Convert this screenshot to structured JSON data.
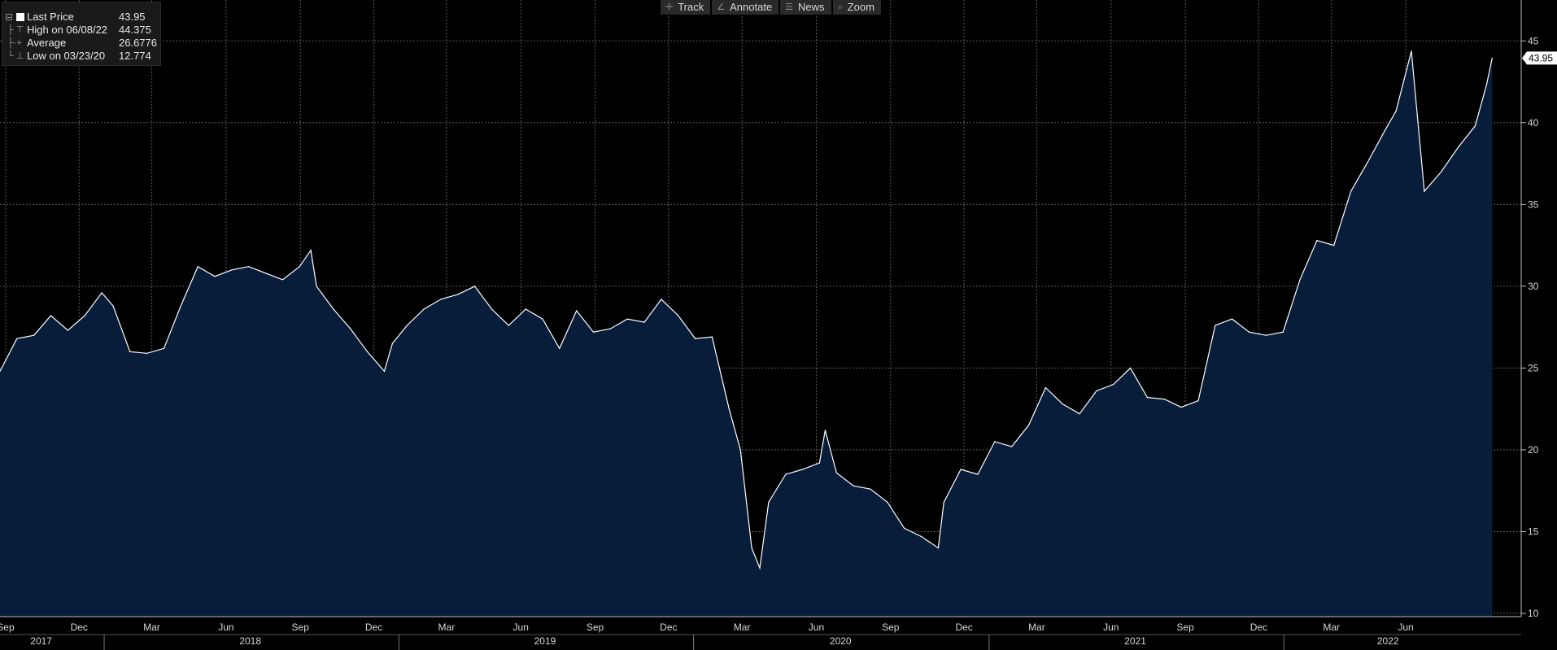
{
  "toolbar": {
    "track": {
      "label": "Track",
      "icon": "crosshair-icon"
    },
    "annotate": {
      "label": "Annotate",
      "icon": "pencil-icon"
    },
    "news": {
      "label": "News",
      "icon": "news-icon"
    },
    "zoom": {
      "label": "Zoom",
      "icon": "magnifier-icon"
    }
  },
  "legend": {
    "last": {
      "label": "Last Price",
      "value": "43.95"
    },
    "high": {
      "label": "High on 06/08/22",
      "value": "44.375"
    },
    "average": {
      "label": "Average",
      "value": "26.6776"
    },
    "low": {
      "label": "Low on 03/23/20",
      "value": "12.774"
    }
  },
  "colors": {
    "background": "#000000",
    "area_fill": "#071d3a",
    "line": "#ffffff",
    "grid": "#5a5a5a"
  },
  "chart_data": {
    "type": "area",
    "series": [
      {
        "name": "Last Price",
        "x": [
          "2017-08-25",
          "2017-09-15",
          "2017-10-06",
          "2017-10-27",
          "2017-11-17",
          "2017-12-08",
          "2017-12-29",
          "2018-01-12",
          "2018-02-02",
          "2018-02-23",
          "2018-03-16",
          "2018-04-06",
          "2018-04-27",
          "2018-05-18",
          "2018-06-08",
          "2018-06-29",
          "2018-07-20",
          "2018-08-10",
          "2018-08-31",
          "2018-09-14",
          "2018-09-21",
          "2018-10-12",
          "2018-11-02",
          "2018-11-23",
          "2018-12-14",
          "2018-12-24",
          "2019-01-11",
          "2019-02-01",
          "2019-02-22",
          "2019-03-15",
          "2019-04-05",
          "2019-04-26",
          "2019-05-17",
          "2019-06-07",
          "2019-06-28",
          "2019-07-19",
          "2019-08-09",
          "2019-08-30",
          "2019-09-20",
          "2019-10-11",
          "2019-11-01",
          "2019-11-22",
          "2019-12-13",
          "2020-01-03",
          "2020-01-24",
          "2020-02-14",
          "2020-02-28",
          "2020-03-13",
          "2020-03-23",
          "2020-04-03",
          "2020-04-24",
          "2020-05-15",
          "2020-06-05",
          "2020-06-12",
          "2020-06-26",
          "2020-07-17",
          "2020-08-07",
          "2020-08-28",
          "2020-09-18",
          "2020-10-09",
          "2020-10-30",
          "2020-11-06",
          "2020-11-27",
          "2020-12-18",
          "2021-01-08",
          "2021-01-29",
          "2021-02-19",
          "2021-03-12",
          "2021-04-02",
          "2021-04-23",
          "2021-05-14",
          "2021-06-04",
          "2021-06-25",
          "2021-07-16",
          "2021-08-06",
          "2021-08-27",
          "2021-09-17",
          "2021-10-08",
          "2021-10-29",
          "2021-11-19",
          "2021-12-10",
          "2021-12-31",
          "2022-01-21",
          "2022-02-11",
          "2022-03-04",
          "2022-03-25",
          "2022-04-15",
          "2022-05-06",
          "2022-05-20",
          "2022-06-08",
          "2022-06-24",
          "2022-07-15",
          "2022-08-05",
          "2022-08-26",
          "2022-09-09",
          "2022-09-16"
        ],
        "values": [
          24.8,
          26.8,
          27.0,
          28.2,
          27.3,
          28.2,
          29.6,
          28.8,
          26.0,
          25.9,
          26.2,
          28.8,
          31.2,
          30.6,
          31.0,
          31.2,
          30.8,
          30.4,
          31.2,
          32.2,
          30.0,
          28.6,
          27.4,
          26.0,
          24.8,
          26.5,
          27.6,
          28.6,
          29.2,
          29.5,
          30.0,
          28.6,
          27.6,
          28.6,
          28.0,
          26.2,
          28.5,
          27.2,
          27.4,
          28.0,
          27.8,
          29.2,
          28.2,
          26.8,
          26.9,
          22.5,
          20.0,
          14.0,
          12.774,
          16.8,
          18.5,
          18.8,
          19.2,
          21.2,
          18.6,
          17.8,
          17.6,
          16.8,
          15.2,
          14.7,
          14.0,
          16.8,
          18.8,
          18.5,
          20.5,
          20.2,
          21.5,
          23.8,
          22.8,
          22.2,
          23.6,
          24.0,
          25.0,
          23.2,
          23.1,
          22.6,
          23.0,
          27.6,
          28.0,
          27.2,
          27.0,
          27.2,
          30.4,
          32.8,
          32.5,
          35.8,
          37.6,
          39.5,
          40.7,
          44.375,
          35.8,
          37.0,
          38.5,
          39.8,
          42.3,
          43.95
        ]
      }
    ],
    "x_ticks": [
      {
        "date": "2017-09-01",
        "label": "Sep"
      },
      {
        "date": "2017-12-01",
        "label": "Dec"
      },
      {
        "date": "2018-03-01",
        "label": "Mar"
      },
      {
        "date": "2018-06-01",
        "label": "Jun"
      },
      {
        "date": "2018-09-01",
        "label": "Sep"
      },
      {
        "date": "2018-12-01",
        "label": "Dec"
      },
      {
        "date": "2019-03-01",
        "label": "Mar"
      },
      {
        "date": "2019-06-01",
        "label": "Jun"
      },
      {
        "date": "2019-09-01",
        "label": "Sep"
      },
      {
        "date": "2019-12-01",
        "label": "Dec"
      },
      {
        "date": "2020-03-01",
        "label": "Mar"
      },
      {
        "date": "2020-06-01",
        "label": "Jun"
      },
      {
        "date": "2020-09-01",
        "label": "Sep"
      },
      {
        "date": "2020-12-01",
        "label": "Dec"
      },
      {
        "date": "2021-03-01",
        "label": "Mar"
      },
      {
        "date": "2021-06-01",
        "label": "Jun"
      },
      {
        "date": "2021-09-01",
        "label": "Sep"
      },
      {
        "date": "2021-12-01",
        "label": "Dec"
      },
      {
        "date": "2022-03-01",
        "label": "Mar"
      },
      {
        "date": "2022-06-01",
        "label": "Jun"
      }
    ],
    "x_year_labels": [
      {
        "label": "2017",
        "date": "2017-10-15"
      },
      {
        "label": "2018",
        "date": "2018-07-01"
      },
      {
        "label": "2019",
        "date": "2019-07-01"
      },
      {
        "label": "2020",
        "date": "2020-07-01"
      },
      {
        "label": "2021",
        "date": "2021-07-01"
      },
      {
        "label": "2022",
        "date": "2022-05-10"
      }
    ],
    "x_year_dividers": [
      "2018-01-01",
      "2019-01-01",
      "2020-01-01",
      "2021-01-01",
      "2022-01-01"
    ],
    "x_range": [
      "2017-08-25",
      "2022-10-20"
    ],
    "y_ticks": [
      10,
      15,
      20,
      25,
      30,
      35,
      40,
      45
    ],
    "ylim": [
      9.8,
      47.5
    ],
    "y_axis_side": "right",
    "grid": true,
    "last_value_label": "43.95",
    "legend_position": "top-left"
  }
}
